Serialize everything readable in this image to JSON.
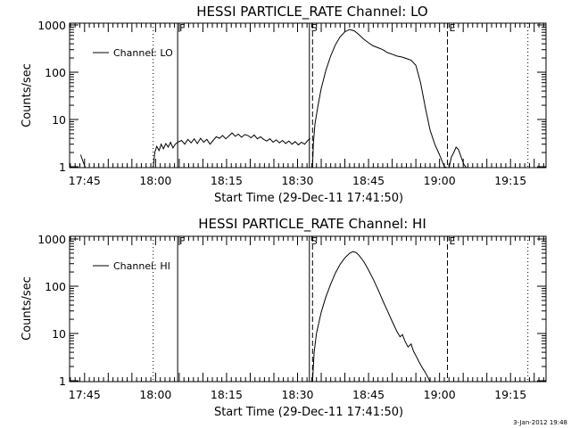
{
  "chart_data": [
    {
      "type": "line",
      "title": "HESSI PARTICLE_RATE Channel: LO",
      "xlabel": "Start Time (29-Dec-11 17:41:50)",
      "ylabel": "Counts/sec",
      "yscale": "log",
      "xlim": [
        "17:41:50",
        "19:22:30"
      ],
      "ylim": [
        0.85,
        1100
      ],
      "x_ticks": [
        "17:45",
        "18:00",
        "18:15",
        "18:30",
        "18:45",
        "19:00",
        "19:15"
      ],
      "y_ticks": [
        "1",
        "10",
        "100",
        "1000"
      ],
      "legend": {
        "position": "top-left"
      },
      "markers": [
        {
          "label": "",
          "time": "17:59:30",
          "style": "dotted"
        },
        {
          "label": "F",
          "time": "18:04:40",
          "style": "solid"
        },
        {
          "label": "S",
          "time": "18:32:30",
          "style": "solid"
        },
        {
          "label": "",
          "time": "18:33:10",
          "style": "dashed"
        },
        {
          "label": "E",
          "time": "19:01:40",
          "style": "dashed"
        },
        {
          "label": "",
          "time": "19:18:40",
          "style": "dotted"
        }
      ],
      "series": [
        {
          "name": "Channel: LO",
          "segments": [
            [
              [
                "17:44:10",
                1.8
              ],
              [
                "17:44:40",
                1.3
              ],
              [
                "17:45:10",
                0.85
              ]
            ],
            [
              [
                "17:59:30",
                0.85
              ],
              [
                "17:59:50",
                2.0
              ],
              [
                "18:00:15",
                2.7
              ],
              [
                "18:00:45",
                2.2
              ],
              [
                "18:01:10",
                3.0
              ],
              [
                "18:01:40",
                2.4
              ],
              [
                "18:02:10",
                3.1
              ],
              [
                "18:02:40",
                2.6
              ],
              [
                "18:03:10",
                3.3
              ],
              [
                "18:03:40",
                2.5
              ],
              [
                "18:04:10",
                3.0
              ],
              [
                "18:04:40",
                3.3
              ],
              [
                "18:05:30",
                3.6
              ],
              [
                "18:06:10",
                3.0
              ],
              [
                "18:06:50",
                3.8
              ],
              [
                "18:07:30",
                3.2
              ],
              [
                "18:08:10",
                3.9
              ],
              [
                "18:08:50",
                3.1
              ],
              [
                "18:09:30",
                4.0
              ],
              [
                "18:10:10",
                3.3
              ],
              [
                "18:10:50",
                3.8
              ],
              [
                "18:11:30",
                3.0
              ],
              [
                "18:12:10",
                3.6
              ],
              [
                "18:12:50",
                4.3
              ],
              [
                "18:13:30",
                4.0
              ],
              [
                "18:14:10",
                4.6
              ],
              [
                "18:14:50",
                3.9
              ],
              [
                "18:15:30",
                4.5
              ],
              [
                "18:16:10",
                5.2
              ],
              [
                "18:16:50",
                4.4
              ],
              [
                "18:17:30",
                4.9
              ],
              [
                "18:18:10",
                4.2
              ],
              [
                "18:18:50",
                4.8
              ],
              [
                "18:19:30",
                4.6
              ],
              [
                "18:20:10",
                4.1
              ],
              [
                "18:20:50",
                4.7
              ],
              [
                "18:21:30",
                3.9
              ],
              [
                "18:22:10",
                4.3
              ],
              [
                "18:22:50",
                3.8
              ],
              [
                "18:23:30",
                3.5
              ],
              [
                "18:24:10",
                3.9
              ],
              [
                "18:24:50",
                3.3
              ],
              [
                "18:25:30",
                3.7
              ],
              [
                "18:26:10",
                3.2
              ],
              [
                "18:26:50",
                3.6
              ],
              [
                "18:27:30",
                3.1
              ],
              [
                "18:28:10",
                3.5
              ],
              [
                "18:28:50",
                3.0
              ],
              [
                "18:29:30",
                3.4
              ],
              [
                "18:30:10",
                2.9
              ],
              [
                "18:30:50",
                3.3
              ],
              [
                "18:31:30",
                3.0
              ],
              [
                "18:32:10",
                3.6
              ],
              [
                "18:32:40",
                4.0
              ]
            ],
            [
              [
                "18:33:10",
                0.85
              ],
              [
                "18:33:20",
                3.0
              ],
              [
                "18:33:40",
                8.0
              ],
              [
                "18:34:20",
                20
              ],
              [
                "18:35:00",
                45
              ],
              [
                "18:36:00",
                110
              ],
              [
                "18:37:00",
                220
              ],
              [
                "18:38:00",
                380
              ],
              [
                "18:39:00",
                560
              ],
              [
                "18:40:00",
                720
              ],
              [
                "18:41:00",
                800
              ],
              [
                "18:42:00",
                750
              ],
              [
                "18:43:00",
                620
              ],
              [
                "18:44:00",
                500
              ],
              [
                "18:45:00",
                420
              ],
              [
                "18:46:00",
                360
              ],
              [
                "18:47:00",
                330
              ],
              [
                "18:48:00",
                300
              ],
              [
                "18:49:00",
                260
              ],
              [
                "18:50:00",
                240
              ],
              [
                "18:51:00",
                220
              ],
              [
                "18:52:00",
                210
              ],
              [
                "18:53:00",
                195
              ],
              [
                "18:54:00",
                180
              ],
              [
                "18:55:00",
                140
              ],
              [
                "18:56:00",
                60
              ],
              [
                "18:57:00",
                18
              ],
              [
                "18:58:00",
                6
              ],
              [
                "18:59:00",
                3
              ],
              [
                "19:00:00",
                1.8
              ],
              [
                "19:01:00",
                1.0
              ],
              [
                "19:01:30",
                0.85
              ]
            ],
            [
              [
                "19:02:00",
                0.85
              ],
              [
                "19:02:30",
                1.6
              ],
              [
                "19:03:00",
                2.0
              ],
              [
                "19:03:30",
                2.6
              ],
              [
                "19:04:00",
                2.3
              ],
              [
                "19:04:40",
                1.5
              ],
              [
                "19:05:10",
                1.1
              ],
              [
                "19:05:40",
                0.85
              ]
            ]
          ]
        }
      ]
    },
    {
      "type": "line",
      "title": "HESSI PARTICLE_RATE Channel: HI",
      "xlabel": "Start Time (29-Dec-11 17:41:50)",
      "ylabel": "Counts/sec",
      "yscale": "log",
      "xlim": [
        "17:41:50",
        "19:22:30"
      ],
      "ylim": [
        0.85,
        1100
      ],
      "x_ticks": [
        "17:45",
        "18:00",
        "18:15",
        "18:30",
        "18:45",
        "19:00",
        "19:15"
      ],
      "y_ticks": [
        "1",
        "10",
        "100",
        "1000"
      ],
      "legend": {
        "position": "top-left"
      },
      "markers": [
        {
          "label": "",
          "time": "17:59:30",
          "style": "dotted"
        },
        {
          "label": "F",
          "time": "18:04:40",
          "style": "solid"
        },
        {
          "label": "S",
          "time": "18:32:30",
          "style": "solid"
        },
        {
          "label": "",
          "time": "18:33:10",
          "style": "dashed"
        },
        {
          "label": "E",
          "time": "19:01:40",
          "style": "dashed"
        },
        {
          "label": "",
          "time": "19:18:40",
          "style": "dotted"
        }
      ],
      "series": [
        {
          "name": "Channel: HI",
          "segments": [
            [
              [
                "18:33:10",
                0.85
              ],
              [
                "18:33:30",
                4.0
              ],
              [
                "18:34:00",
                10
              ],
              [
                "18:35:00",
                28
              ],
              [
                "18:36:00",
                60
              ],
              [
                "18:37:00",
                110
              ],
              [
                "18:38:00",
                190
              ],
              [
                "18:39:00",
                290
              ],
              [
                "18:40:00",
                400
              ],
              [
                "18:41:00",
                500
              ],
              [
                "18:41:40",
                540
              ],
              [
                "18:42:20",
                520
              ],
              [
                "18:43:00",
                450
              ],
              [
                "18:44:00",
                330
              ],
              [
                "18:45:00",
                220
              ],
              [
                "18:46:00",
                140
              ],
              [
                "18:47:00",
                85
              ],
              [
                "18:48:00",
                50
              ],
              [
                "18:49:00",
                30
              ],
              [
                "18:50:00",
                18
              ],
              [
                "18:51:00",
                11
              ],
              [
                "18:51:40",
                8.5
              ],
              [
                "18:52:10",
                9.5
              ],
              [
                "18:52:40",
                7.0
              ],
              [
                "18:53:20",
                5.2
              ],
              [
                "18:54:00",
                6.0
              ],
              [
                "18:54:30",
                4.2
              ],
              [
                "18:55:00",
                3.4
              ],
              [
                "18:55:40",
                2.5
              ],
              [
                "18:56:20",
                1.9
              ],
              [
                "18:57:00",
                1.5
              ],
              [
                "18:57:30",
                1.2
              ],
              [
                "18:58:00",
                0.85
              ]
            ]
          ]
        }
      ]
    }
  ],
  "timestamp": "3-Jan-2012 19:48"
}
